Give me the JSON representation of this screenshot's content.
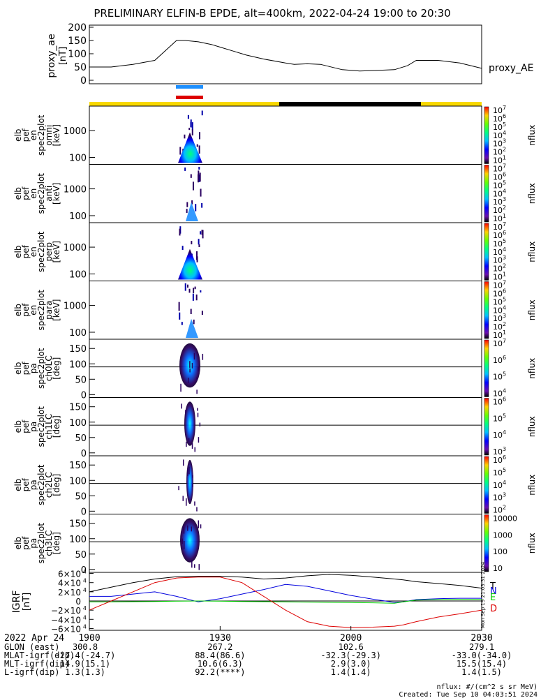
{
  "title": "PRELIMINARY ELFIN-B EPDE, alt=400km, 2022-04-24 19:00 to 20:30",
  "colors": {
    "ae_line": "#000000",
    "sci_blue": "#1e90ff",
    "sci_red": "#dd0000",
    "bar_yellow": "#f8d800",
    "bar_black": "#000000",
    "igrf_T": "#000000",
    "igrf_N": "#0000dd",
    "igrf_E": "#00cc00",
    "igrf_D": "#dd0000"
  },
  "ae_panel": {
    "ylabel": "proxy_ae",
    "yunit": "[nT]",
    "legend": "proxy_AE",
    "ticks": [
      "200",
      "150",
      "100",
      "50",
      "0"
    ],
    "ylim": [
      0,
      200
    ]
  },
  "spec_panels": [
    {
      "lines": [
        "elb",
        "pef",
        "en",
        "spec2plot",
        "omni",
        "[keV]"
      ],
      "yticks": [
        "1000",
        "100"
      ],
      "cb_ticks": [
        "10",
        "10",
        "10",
        "10",
        "10",
        "10",
        "10"
      ],
      "cb_exp": [
        "7",
        "6",
        "5",
        "4",
        "3",
        "2",
        "1"
      ],
      "cb_label": "nflux"
    },
    {
      "lines": [
        "elb",
        "pef",
        "en",
        "spec2plot",
        "anti",
        "[keV]"
      ],
      "yticks": [
        "1000",
        "100"
      ],
      "cb_ticks": [
        "10",
        "10",
        "10",
        "10",
        "10",
        "10",
        "10"
      ],
      "cb_exp": [
        "7",
        "6",
        "5",
        "4",
        "3",
        "2",
        "1"
      ],
      "cb_label": "nflux"
    },
    {
      "lines": [
        "elb",
        "pef",
        "en",
        "spec2plot",
        "perp",
        "[keV]"
      ],
      "yticks": [
        "1000",
        "100"
      ],
      "cb_ticks": [
        "10",
        "10",
        "10",
        "10",
        "10",
        "10",
        "10"
      ],
      "cb_exp": [
        "7",
        "6",
        "5",
        "4",
        "3",
        "2",
        "1"
      ],
      "cb_label": "nflux"
    },
    {
      "lines": [
        "elb",
        "pef",
        "en",
        "spec2plot",
        "para",
        "[keV]"
      ],
      "yticks": [
        "1000",
        "100"
      ],
      "cb_ticks": [
        "10",
        "10",
        "10",
        "10",
        "10",
        "10",
        "10"
      ],
      "cb_exp": [
        "7",
        "6",
        "5",
        "4",
        "3",
        "2",
        "1"
      ],
      "cb_label": "nflux"
    }
  ],
  "pa_panels": [
    {
      "lines": [
        "elb",
        "pef",
        "pa",
        "spec2plot",
        "ch0LC",
        "[deg]"
      ],
      "yticks": [
        "150",
        "100",
        "50",
        "0"
      ],
      "cb_ticks": [
        "10",
        "10",
        "10",
        "10"
      ],
      "cb_exp": [
        "7",
        "6",
        "5",
        "4"
      ],
      "cb_label": "nflux"
    },
    {
      "lines": [
        "elb",
        "pef",
        "pa",
        "spec2plot",
        "ch1LC",
        "[deg]"
      ],
      "yticks": [
        "150",
        "100",
        "50",
        "0"
      ],
      "cb_ticks": [
        "10",
        "10",
        "10",
        "10"
      ],
      "cb_exp": [
        "6",
        "5",
        "4",
        "3"
      ],
      "cb_label": "nflux"
    },
    {
      "lines": [
        "elb",
        "pef",
        "pa",
        "spec2plot",
        "ch2LC",
        "[deg]"
      ],
      "yticks": [
        "150",
        "100",
        "50",
        "0"
      ],
      "cb_ticks": [
        "10",
        "10",
        "10",
        "10",
        "10"
      ],
      "cb_exp": [
        "6",
        "5",
        "4",
        "3",
        "2"
      ],
      "cb_label": "nflux"
    },
    {
      "lines": [
        "elb",
        "pef",
        "pa",
        "spec2plot",
        "ch3LC",
        "[deg]"
      ],
      "yticks": [
        "150",
        "100",
        "50",
        "0"
      ],
      "cb_ticks": [
        "10000",
        "1000",
        "100",
        "10"
      ],
      "cb_exp": [
        "",
        "",
        "",
        ""
      ],
      "cb_label": "nflux"
    }
  ],
  "igrf_panel": {
    "ylabel": "IGRF",
    "yunit": "[nT]",
    "ytick_mant": [
      "6×10",
      "4×10",
      "2×10",
      "0",
      "−2×10",
      "−4×10",
      "−6×10"
    ],
    "ytick_exp": [
      "4",
      "4",
      "4",
      "",
      "4",
      "4",
      "4"
    ],
    "legend": [
      "T",
      "N",
      "E",
      "D"
    ],
    "side_text": "Mon Sep 19 21:03:31 2024"
  },
  "xaxis": {
    "ticks": [
      "1900",
      "1930",
      "2000",
      "2030"
    ]
  },
  "ephem": {
    "date": "2022 Apr 24",
    "rows": [
      {
        "label": "GLON (east)",
        "values": [
          "300.8",
          "267.2",
          "102.6",
          "279.1"
        ]
      },
      {
        "label": "MLAT-igrf(dip)",
        "values": [
          "-27.4(-24.7)",
          "88.4(86.6)",
          "-32.3(-29.3)",
          "-33.0(-34.0)"
        ]
      },
      {
        "label": "MLT-igrf(dip)",
        "values": [
          "14.9(15.1)",
          "10.6(6.3)",
          "2.9(3.0)",
          "15.5(15.4)"
        ]
      },
      {
        "label": "L-igrf(dip)",
        "values": [
          "1.3(1.3)",
          "92.2(****)",
          "1.4(1.4)",
          "1.4(1.5)"
        ]
      }
    ]
  },
  "footer": {
    "units": "nflux: #/(cm^2 s sr MeV)",
    "created": "Created: Tue Sep 10 04:03:51 2024"
  },
  "chart_data": {
    "type": "line",
    "time_range": [
      "19:00",
      "20:30"
    ],
    "ae": {
      "name": "proxy_AE",
      "x_min": [
        0,
        5,
        10,
        15,
        20,
        22,
        25,
        28,
        30,
        33,
        36,
        40,
        45,
        47,
        50,
        53,
        58,
        62,
        66,
        70,
        73,
        75,
        80,
        85,
        90
      ],
      "values": [
        50,
        50,
        60,
        75,
        150,
        150,
        145,
        135,
        125,
        110,
        95,
        80,
        65,
        60,
        62,
        60,
        40,
        35,
        37,
        40,
        55,
        75,
        75,
        65,
        45
      ]
    },
    "igrf": {
      "x_min": [
        0,
        5,
        10,
        15,
        20,
        25,
        30,
        35,
        40,
        45,
        50,
        55,
        60,
        65,
        70,
        72,
        75,
        80,
        85,
        90
      ],
      "T": [
        20000,
        30000,
        40000,
        48000,
        53000,
        54000,
        54000,
        52000,
        48000,
        50000,
        55000,
        58000,
        56000,
        52000,
        48000,
        46000,
        42000,
        38000,
        34000,
        28000
      ],
      "N": [
        10000,
        10000,
        15000,
        20000,
        10000,
        -2000,
        5000,
        15000,
        25000,
        36000,
        32000,
        22000,
        12000,
        4000,
        -3000,
        -2000,
        3000,
        5000,
        6000,
        6000
      ],
      "E": [
        -2000,
        -2000,
        -1500,
        -1000,
        -500,
        0,
        -500,
        -1000,
        -1500,
        -2000,
        -2500,
        -3000,
        -3500,
        -4000,
        -5000,
        -2000,
        2000,
        3000,
        3500,
        3500
      ],
      "D": [
        -20000,
        0,
        20000,
        40000,
        50000,
        52000,
        52000,
        40000,
        10000,
        -20000,
        -45000,
        -55000,
        -58000,
        -57000,
        -55000,
        -52000,
        -45000,
        -35000,
        -28000,
        -20000
      ]
    },
    "ylim_ae": [
      0,
      200
    ],
    "ylim_igrf": [
      -60000,
      60000
    ],
    "science_zone_min": [
      20.5,
      26.5
    ],
    "eclipse_min": [
      43,
      75
    ]
  }
}
